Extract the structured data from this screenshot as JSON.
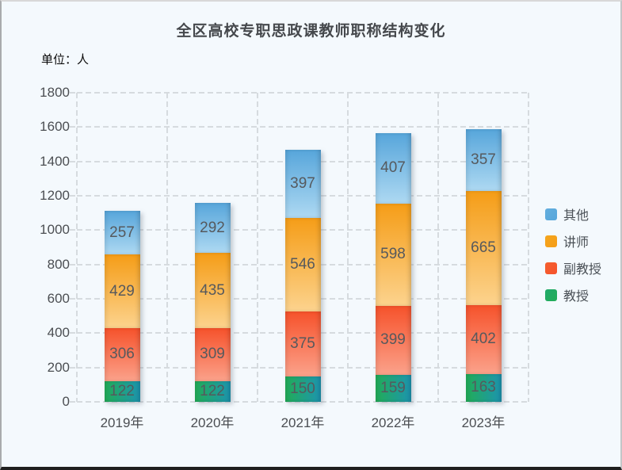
{
  "title": "全区高校专职思政课教师职称结构变化",
  "unit_label": "单位：人",
  "chart_data": {
    "type": "bar",
    "stacked": true,
    "title": "全区高校专职思政课教师职称结构变化",
    "xlabel": "",
    "ylabel": "单位：人",
    "categories": [
      "2019年",
      "2020年",
      "2021年",
      "2022年",
      "2023年"
    ],
    "series": [
      {
        "name": "教授",
        "values": [
          122,
          122,
          150,
          159,
          163
        ],
        "color_from": "#22ac57",
        "color_to": "#1d95b0",
        "gradient_direction": "horizontal",
        "legend_color": "#21a96b"
      },
      {
        "name": "副教授",
        "values": [
          306,
          309,
          375,
          399,
          402
        ],
        "color_from": "#f6522b",
        "color_to": "#fba28b",
        "gradient_direction": "vertical",
        "legend_color": "#f4602f"
      },
      {
        "name": "讲师",
        "values": [
          429,
          435,
          546,
          598,
          665
        ],
        "color_from": "#f59d17",
        "color_to": "#fcd38e",
        "gradient_direction": "vertical",
        "legend_color": "#f5a51d"
      },
      {
        "name": "其他",
        "values": [
          257,
          292,
          397,
          407,
          357
        ],
        "color_from": "#57a6db",
        "color_to": "#aed9f2",
        "gradient_direction": "vertical",
        "legend_color": "#63aede"
      }
    ],
    "legend_order": [
      "其他",
      "讲师",
      "副教授",
      "教授"
    ],
    "legend_position": "right",
    "value_labels": true,
    "grid": true,
    "ylim": [
      0,
      1800
    ],
    "y_ticks": [
      0,
      200,
      400,
      600,
      800,
      1000,
      1200,
      1400,
      1600,
      1800
    ]
  },
  "colors": {
    "background": "#f4f9fd",
    "grid_line": "#d6dbdf",
    "axis_text": "#4b4e52",
    "bar_label_text": "#56595d",
    "title_text": "#45484c"
  }
}
